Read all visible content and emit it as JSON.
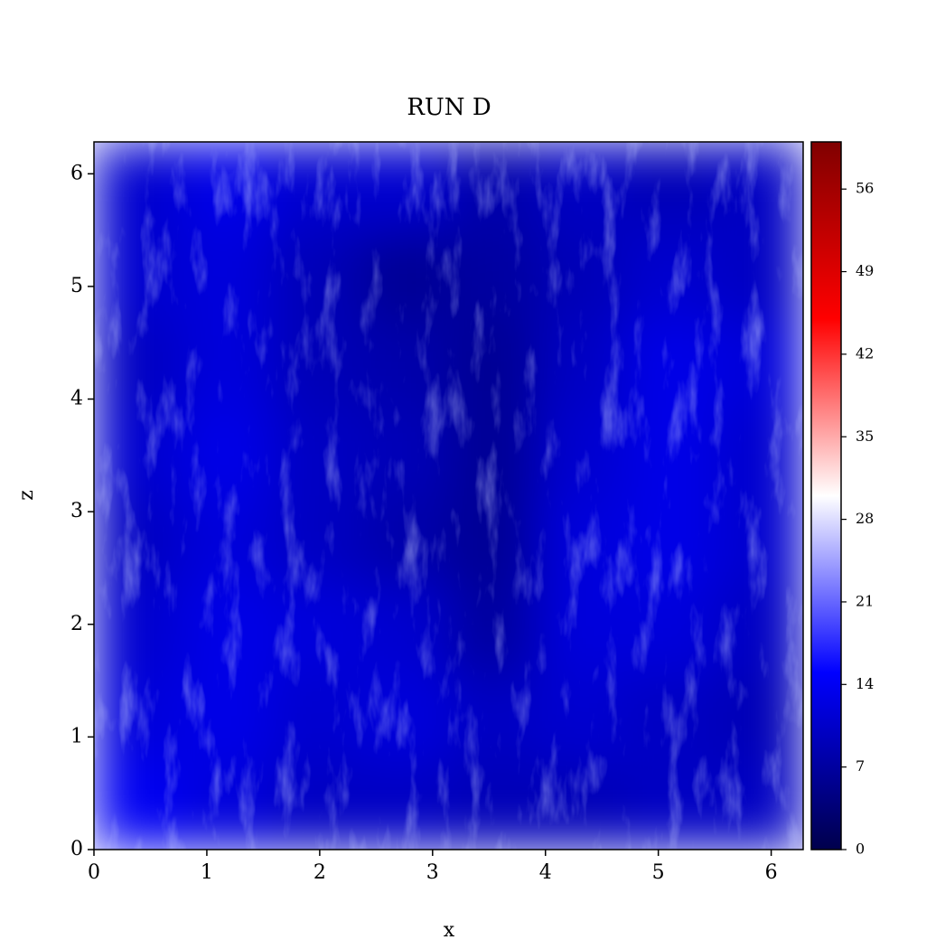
{
  "chart_data": {
    "type": "heatmap",
    "title": "RUN D",
    "x_label": "x",
    "y_label": "z",
    "xlim": [
      0,
      6.2832
    ],
    "ylim": [
      0,
      6.2832
    ],
    "xticks": [
      0,
      1,
      2,
      3,
      4,
      5,
      6
    ],
    "yticks": [
      0,
      1,
      2,
      3,
      4,
      5,
      6
    ],
    "values": [
      [
        14,
        12,
        10,
        10,
        9,
        9,
        10,
        10
      ],
      [
        12,
        13,
        11,
        12,
        10,
        11,
        10,
        9
      ],
      [
        11,
        13,
        12,
        11,
        7,
        12,
        12,
        10
      ],
      [
        10,
        12,
        10,
        8,
        6,
        12,
        13,
        11
      ],
      [
        11,
        13,
        10,
        9,
        6,
        11,
        13,
        11
      ],
      [
        10,
        12,
        9,
        8,
        6,
        10,
        13,
        12
      ],
      [
        11,
        12,
        9,
        6,
        7,
        9,
        11,
        10
      ],
      [
        11,
        13,
        11,
        11,
        8,
        10,
        9,
        10
      ]
    ],
    "colormap": [
      "#00004c",
      "#0000ff",
      "#ffffff",
      "#ff0000",
      "#800000"
    ],
    "colorbar": {
      "lim": [
        0,
        60
      ],
      "ticks": [
        0,
        7,
        14,
        21,
        28,
        35,
        42,
        49,
        56
      ]
    }
  }
}
